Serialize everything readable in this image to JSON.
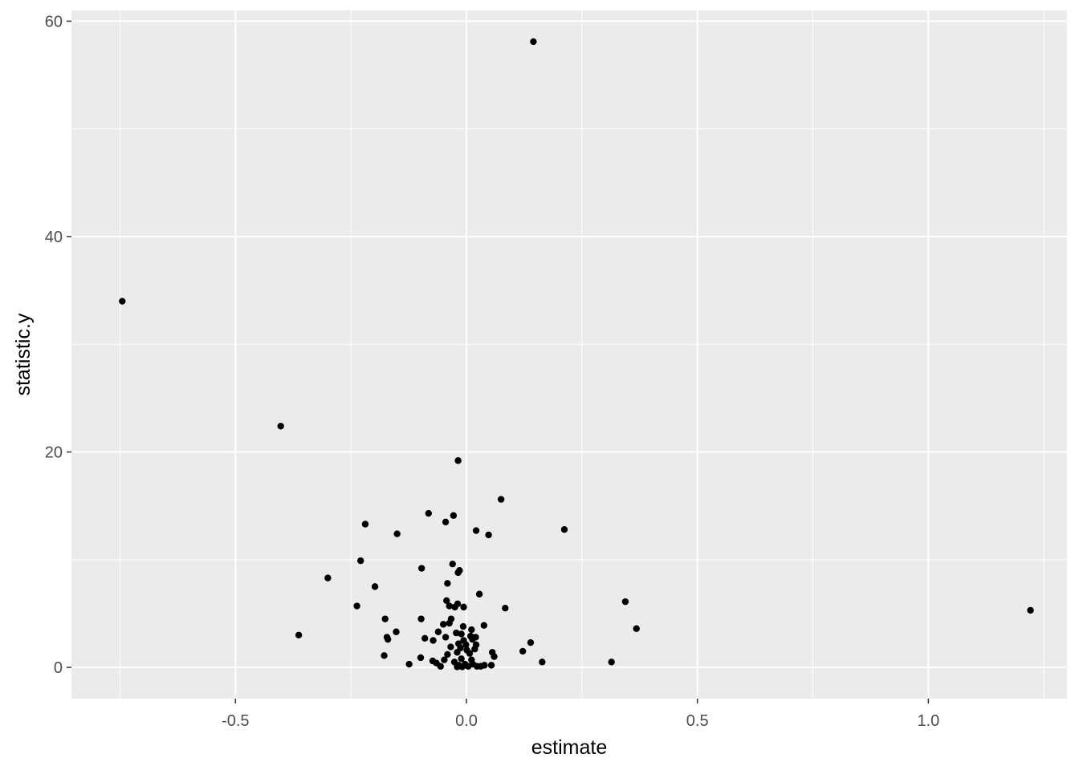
{
  "chart_data": {
    "type": "scatter",
    "title": "",
    "xlabel": "estimate",
    "ylabel": "statistic.y",
    "xlim": [
      -0.855,
      1.3
    ],
    "ylim": [
      -2.9,
      61.0
    ],
    "x_ticks": [
      -0.5,
      0.0,
      0.5,
      1.0
    ],
    "x_tick_labels": [
      "-0.5",
      "0.0",
      "0.5",
      "1.0"
    ],
    "y_ticks": [
      0,
      20,
      40,
      60
    ],
    "y_tick_labels": [
      "0",
      "20",
      "40",
      "60"
    ],
    "grid": true,
    "legend": "none",
    "colors": {
      "panel": "#ebebeb",
      "grid": "#ffffff",
      "point": "#000000",
      "tick_text": "#4d4d4d",
      "tick_mark": "#333333"
    },
    "points": [
      {
        "x": 0.145,
        "y": 58.1
      },
      {
        "x": -0.745,
        "y": 34.0
      },
      {
        "x": -0.402,
        "y": 22.4
      },
      {
        "x": -0.018,
        "y": 19.2
      },
      {
        "x": 0.075,
        "y": 15.6
      },
      {
        "x": -0.082,
        "y": 14.3
      },
      {
        "x": -0.028,
        "y": 14.1
      },
      {
        "x": -0.045,
        "y": 13.5
      },
      {
        "x": -0.219,
        "y": 13.3
      },
      {
        "x": 0.021,
        "y": 12.7
      },
      {
        "x": 0.212,
        "y": 12.8
      },
      {
        "x": -0.15,
        "y": 12.4
      },
      {
        "x": 0.048,
        "y": 12.3
      },
      {
        "x": -0.229,
        "y": 9.9
      },
      {
        "x": -0.03,
        "y": 9.6
      },
      {
        "x": -0.097,
        "y": 9.2
      },
      {
        "x": -0.015,
        "y": 9.0
      },
      {
        "x": -0.018,
        "y": 8.8
      },
      {
        "x": -0.3,
        "y": 8.3
      },
      {
        "x": -0.041,
        "y": 7.8
      },
      {
        "x": -0.198,
        "y": 7.5
      },
      {
        "x": 0.028,
        "y": 6.8
      },
      {
        "x": -0.043,
        "y": 6.2
      },
      {
        "x": 0.344,
        "y": 6.1
      },
      {
        "x": -0.019,
        "y": 5.9
      },
      {
        "x": -0.037,
        "y": 5.7
      },
      {
        "x": -0.025,
        "y": 5.6
      },
      {
        "x": -0.006,
        "y": 5.6
      },
      {
        "x": -0.237,
        "y": 5.7
      },
      {
        "x": 0.084,
        "y": 5.5
      },
      {
        "x": 1.221,
        "y": 5.3
      },
      {
        "x": -0.176,
        "y": 4.5
      },
      {
        "x": -0.098,
        "y": 4.5
      },
      {
        "x": -0.033,
        "y": 4.5
      },
      {
        "x": -0.037,
        "y": 4.1
      },
      {
        "x": -0.05,
        "y": 4.0
      },
      {
        "x": 0.038,
        "y": 3.9
      },
      {
        "x": -0.007,
        "y": 3.8
      },
      {
        "x": 0.368,
        "y": 3.6
      },
      {
        "x": 0.011,
        "y": 3.5
      },
      {
        "x": -0.152,
        "y": 3.3
      },
      {
        "x": -0.061,
        "y": 3.3
      },
      {
        "x": -0.022,
        "y": 3.2
      },
      {
        "x": -0.363,
        "y": 3.0
      },
      {
        "x": -0.011,
        "y": 3.1
      },
      {
        "x": 0.009,
        "y": 2.9
      },
      {
        "x": 0.02,
        "y": 2.8
      },
      {
        "x": -0.045,
        "y": 2.8
      },
      {
        "x": -0.172,
        "y": 2.8
      },
      {
        "x": -0.09,
        "y": 2.7
      },
      {
        "x": -0.072,
        "y": 2.5
      },
      {
        "x": -0.17,
        "y": 2.6
      },
      {
        "x": 0.013,
        "y": 2.6
      },
      {
        "x": -0.006,
        "y": 2.5
      },
      {
        "x": 0.139,
        "y": 2.3
      },
      {
        "x": -0.017,
        "y": 2.2
      },
      {
        "x": -0.001,
        "y": 2.1
      },
      {
        "x": 0.021,
        "y": 2.1
      },
      {
        "x": -0.034,
        "y": 1.9
      },
      {
        "x": -0.013,
        "y": 1.8
      },
      {
        "x": 0.018,
        "y": 1.7
      },
      {
        "x": 0.001,
        "y": 1.6
      },
      {
        "x": 0.122,
        "y": 1.5
      },
      {
        "x": 0.056,
        "y": 1.4
      },
      {
        "x": -0.02,
        "y": 1.4
      },
      {
        "x": 0.007,
        "y": 1.3
      },
      {
        "x": -0.041,
        "y": 1.2
      },
      {
        "x": -0.178,
        "y": 1.1
      },
      {
        "x": 0.06,
        "y": 1.0
      },
      {
        "x": -0.099,
        "y": 0.9
      },
      {
        "x": -0.011,
        "y": 0.8
      },
      {
        "x": -0.048,
        "y": 0.7
      },
      {
        "x": 0.011,
        "y": 0.7
      },
      {
        "x": -0.073,
        "y": 0.6
      },
      {
        "x": -0.026,
        "y": 0.5
      },
      {
        "x": 0.164,
        "y": 0.5
      },
      {
        "x": 0.314,
        "y": 0.5
      },
      {
        "x": -0.065,
        "y": 0.4
      },
      {
        "x": -0.124,
        "y": 0.3
      },
      {
        "x": -0.003,
        "y": 0.3
      },
      {
        "x": 0.014,
        "y": 0.3
      },
      {
        "x": -0.017,
        "y": 0.2
      },
      {
        "x": 0.039,
        "y": 0.2
      },
      {
        "x": 0.054,
        "y": 0.2
      },
      {
        "x": -0.056,
        "y": 0.1
      },
      {
        "x": 0.004,
        "y": 0.1
      },
      {
        "x": 0.023,
        "y": 0.1
      },
      {
        "x": -0.02,
        "y": 0.05
      },
      {
        "x": -0.009,
        "y": 0.05
      },
      {
        "x": 0.031,
        "y": 0.1
      }
    ]
  }
}
